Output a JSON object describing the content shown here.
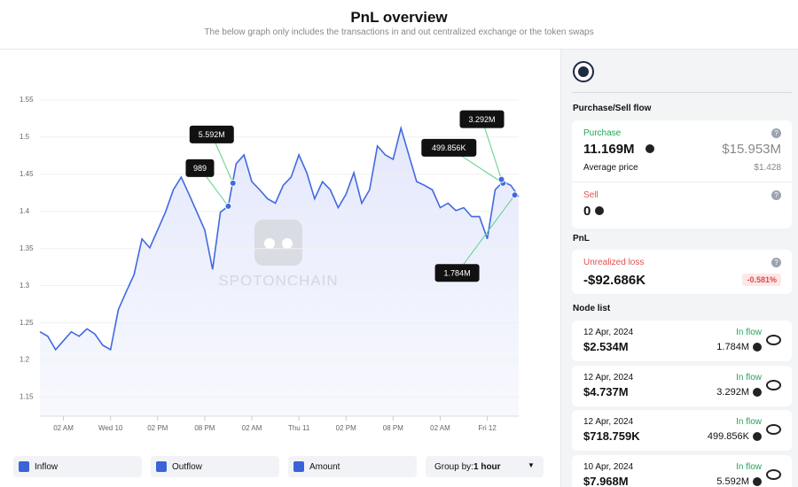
{
  "header": {
    "title": "PnL overview",
    "subtitle": "The below graph only includes the transactions in and out centralized exchange or the token swaps"
  },
  "chart_data": {
    "type": "line",
    "color": "#4169e1",
    "watermark": "SPOTONCHAIN",
    "x": [
      -3,
      -2,
      -1,
      0,
      1,
      2,
      3,
      4,
      5,
      6,
      7,
      8,
      9,
      10,
      11,
      12,
      13,
      14,
      15,
      16,
      17,
      18,
      19,
      20,
      21,
      22,
      23,
      24,
      25,
      26,
      27,
      28,
      29,
      30,
      31,
      32,
      33,
      34,
      35,
      36,
      37,
      38,
      39,
      40,
      41,
      42,
      43,
      44,
      45,
      46,
      47,
      48,
      49,
      50,
      51,
      52,
      53,
      54,
      55,
      56,
      57,
      58
    ],
    "values": [
      1.238,
      1.232,
      1.214,
      1.226,
      1.238,
      1.232,
      1.242,
      1.235,
      1.22,
      1.214,
      1.268,
      1.292,
      1.315,
      1.363,
      1.351,
      1.375,
      1.399,
      1.429,
      1.446,
      1.423,
      1.399,
      1.375,
      1.322,
      1.399,
      1.407,
      1.464,
      1.476,
      1.44,
      1.429,
      1.417,
      1.411,
      1.435,
      1.446,
      1.476,
      1.452,
      1.417,
      1.44,
      1.429,
      1.405,
      1.423,
      1.452,
      1.411,
      1.429,
      1.488,
      1.476,
      1.47,
      1.512,
      1.476,
      1.44,
      1.435,
      1.429,
      1.405,
      1.411,
      1.401,
      1.405,
      1.393,
      1.393,
      1.363,
      1.429,
      1.44,
      1.435,
      1.42
    ],
    "xlim": [
      -3,
      58
    ],
    "xticks": [
      {
        "value": 0,
        "label": "02 AM"
      },
      {
        "value": 6,
        "label": "Wed 10"
      },
      {
        "value": 12,
        "label": "02 PM"
      },
      {
        "value": 18,
        "label": "08 PM"
      },
      {
        "value": 24,
        "label": "02 AM"
      },
      {
        "value": 30,
        "label": "Thu 11"
      },
      {
        "value": 36,
        "label": "02 PM"
      },
      {
        "value": 42,
        "label": "08 PM"
      },
      {
        "value": 48,
        "label": "02 AM"
      },
      {
        "value": 54,
        "label": "Fri 12"
      }
    ],
    "ylim": [
      1.14,
      1.57
    ],
    "yticks": [
      1.15,
      1.2,
      1.25,
      1.3,
      1.35,
      1.4,
      1.45,
      1.5,
      1.55
    ],
    "grid": true,
    "annotations": [
      {
        "label": "989",
        "x": 21,
        "y": 1.407
      },
      {
        "label": "5.592M",
        "x": 21.6,
        "y": 1.438
      },
      {
        "label": "499.856K",
        "x": 56,
        "y": 1.438
      },
      {
        "label": "3.292M",
        "x": 55.8,
        "y": 1.443
      },
      {
        "label": "1.784M",
        "x": 57.5,
        "y": 1.422
      }
    ]
  },
  "controls": {
    "inflow": "Inflow",
    "outflow": "Outflow",
    "amount": "Amount",
    "group_by": "Group by:",
    "group_value": "1 hour"
  },
  "side": {
    "flow_title": "Purchase/Sell flow",
    "purchase": {
      "label": "Purchase",
      "amount": "11.169M",
      "usd": "$15.953M",
      "avg_label": "Average price",
      "avg": "$1.428"
    },
    "sell": {
      "label": "Sell",
      "amount": "0"
    },
    "pnl_title": "PnL",
    "pnl": {
      "label": "Unrealized loss",
      "value": "-$92.686K",
      "pct": "-0.581%"
    },
    "node_title": "Node list",
    "nodes": [
      {
        "date": "12 Apr, 2024",
        "kind": "In flow",
        "usd": "$2.534M",
        "amount": "1.784M"
      },
      {
        "date": "12 Apr, 2024",
        "kind": "In flow",
        "usd": "$4.737M",
        "amount": "3.292M"
      },
      {
        "date": "12 Apr, 2024",
        "kind": "In flow",
        "usd": "$718.759K",
        "amount": "499.856K"
      },
      {
        "date": "10 Apr, 2024",
        "kind": "In flow",
        "usd": "$7.968M",
        "amount": "5.592M"
      }
    ]
  }
}
